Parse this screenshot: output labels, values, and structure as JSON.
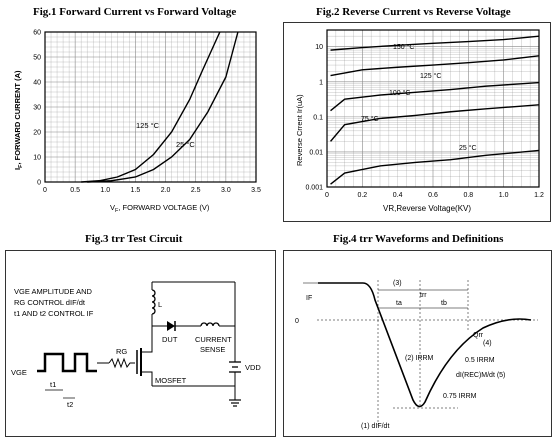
{
  "titles": {
    "fig1": "Fig.1  Forward Current vs Forward Voltage",
    "fig2": "Fig.2  Reverse Current vs Reverse Voltage",
    "fig3": "Fig.3  trr Test Circuit",
    "fig4": "Fig.4 trr Waveforms and Definitions"
  },
  "chart_data": [
    {
      "type": "line",
      "title": "Fig.1  Forward Current vs Forward Voltage",
      "xlabel": "VF, FORWARD VOLTAGE (V)",
      "ylabel": "IF, FORWARD CURRENT (A)",
      "xlim": [
        0,
        3.5
      ],
      "ylim": [
        0,
        60
      ],
      "xticks": [
        "0",
        "0.5",
        "1.0",
        "1.5",
        "2.0",
        "2.5",
        "3.0",
        "3.5"
      ],
      "yticks": [
        "0",
        "10",
        "20",
        "30",
        "40",
        "50",
        "60"
      ],
      "grid": true,
      "series": [
        {
          "name": "125 °C",
          "x": [
            0.6,
            0.9,
            1.2,
            1.5,
            1.8,
            2.1,
            2.4,
            2.6,
            2.9
          ],
          "y": [
            0,
            0.5,
            2,
            5,
            11,
            20,
            33,
            44,
            60
          ]
        },
        {
          "name": "25 °C",
          "x": [
            0.7,
            1.1,
            1.5,
            1.8,
            2.1,
            2.4,
            2.7,
            3.0,
            3.2
          ],
          "y": [
            0,
            0.5,
            2,
            5,
            10,
            17,
            28,
            42,
            60
          ]
        }
      ]
    },
    {
      "type": "line",
      "title": "Fig.2  Reverse Current vs Reverse Voltage",
      "xlabel": "VR,Reverse Voltage(KV)",
      "ylabel": "Reverse Crrent Ir(uA)",
      "xlim": [
        0,
        1.2
      ],
      "ylim": [
        0.001,
        30
      ],
      "yscale": "log",
      "xticks": [
        "0",
        "0.2",
        "0.4",
        "0.6",
        "0.8",
        "1.0",
        "1.2"
      ],
      "yticks": [
        "0.001",
        "0.01",
        "0.1",
        "1",
        "10"
      ],
      "grid": true,
      "series": [
        {
          "name": "150 °C",
          "x": [
            0.02,
            0.2,
            0.4,
            0.6,
            0.8,
            1.0,
            1.2
          ],
          "y": [
            8,
            9.5,
            11,
            12.5,
            14,
            16,
            20
          ]
        },
        {
          "name": "125 °C",
          "x": [
            0.02,
            0.2,
            0.4,
            0.6,
            0.8,
            1.0,
            1.2
          ],
          "y": [
            1.5,
            2.2,
            2.6,
            3,
            3.5,
            4.2,
            5.5
          ]
        },
        {
          "name": "100 °C",
          "x": [
            0.02,
            0.1,
            0.3,
            0.5,
            0.7,
            0.9,
            1.2
          ],
          "y": [
            0.15,
            0.32,
            0.42,
            0.5,
            0.6,
            0.75,
            0.95
          ]
        },
        {
          "name": "75 °C",
          "x": [
            0.02,
            0.1,
            0.3,
            0.5,
            0.7,
            0.9,
            1.2
          ],
          "y": [
            0.02,
            0.06,
            0.09,
            0.11,
            0.14,
            0.17,
            0.22
          ]
        },
        {
          "name": "25 °C",
          "x": [
            0.02,
            0.1,
            0.3,
            0.5,
            0.7,
            0.9,
            1.2
          ],
          "y": [
            0.0012,
            0.0025,
            0.004,
            0.005,
            0.006,
            0.008,
            0.011
          ]
        }
      ]
    }
  ],
  "circuit": {
    "note1": "VGE AMPLITUDE AND",
    "note2": "RG CONTROL dIF/dt",
    "note3": "t1 AND t2 CONTROL IF",
    "vge": "VGE",
    "t1": "t1",
    "t2": "t2",
    "rg": "RG",
    "l": "L",
    "dut": "DUT",
    "sense1": "CURRENT",
    "sense2": "SENSE",
    "vdd": "VDD",
    "mosfet": "MOSFET"
  },
  "waveform": {
    "if": "IF",
    "zero": "0",
    "n3": "(3)",
    "trr": "trr",
    "ta": "ta",
    "tb": "tb",
    "qrr": "Qrr",
    "n4": "(4)",
    "n2": "(2) IRRM",
    "half": "0.5 IRRM",
    "dirr": "dI(REC)M/dt (5)",
    "p75": "0.75 IRRM",
    "n1": "(1)  dIF/dt"
  }
}
